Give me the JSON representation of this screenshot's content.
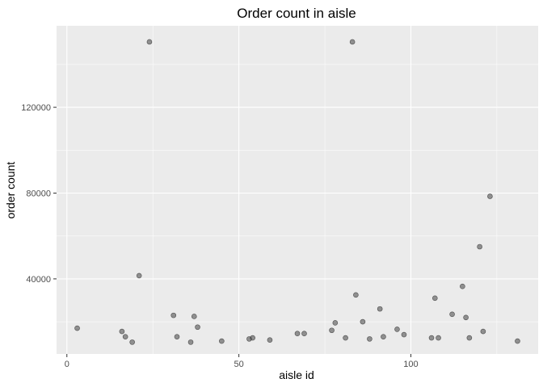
{
  "chart_data": {
    "type": "scatter",
    "title": "Order count in aisle",
    "xlabel": "aisle id",
    "ylabel": "order count",
    "xlim": [
      -3,
      137
    ],
    "ylim": [
      5000,
      158000
    ],
    "x_ticks": [
      0,
      50,
      100
    ],
    "x_minor_ticks": [
      25,
      75,
      125
    ],
    "y_ticks": [
      40000,
      80000,
      120000
    ],
    "y_minor_ticks": [
      20000,
      60000,
      100000,
      140000
    ],
    "grid": true,
    "point_color": "#333333",
    "point_opacity": 0.5,
    "panel_background": "#ebebeb",
    "grid_color": "#ffffff",
    "points": [
      {
        "x": 3,
        "y": 17000
      },
      {
        "x": 16,
        "y": 15500
      },
      {
        "x": 17,
        "y": 13000
      },
      {
        "x": 19,
        "y": 10500
      },
      {
        "x": 21,
        "y": 41500
      },
      {
        "x": 24,
        "y": 150500
      },
      {
        "x": 31,
        "y": 23000
      },
      {
        "x": 32,
        "y": 13000
      },
      {
        "x": 36,
        "y": 10500
      },
      {
        "x": 37,
        "y": 22500
      },
      {
        "x": 38,
        "y": 17500
      },
      {
        "x": 45,
        "y": 11000
      },
      {
        "x": 53,
        "y": 12000
      },
      {
        "x": 54,
        "y": 12500
      },
      {
        "x": 59,
        "y": 11500
      },
      {
        "x": 67,
        "y": 14500
      },
      {
        "x": 69,
        "y": 14500
      },
      {
        "x": 77,
        "y": 16000
      },
      {
        "x": 78,
        "y": 19500
      },
      {
        "x": 81,
        "y": 12500
      },
      {
        "x": 83,
        "y": 150500
      },
      {
        "x": 84,
        "y": 32500
      },
      {
        "x": 86,
        "y": 20000
      },
      {
        "x": 88,
        "y": 12000
      },
      {
        "x": 91,
        "y": 26000
      },
      {
        "x": 92,
        "y": 13000
      },
      {
        "x": 96,
        "y": 16500
      },
      {
        "x": 98,
        "y": 14000
      },
      {
        "x": 106,
        "y": 12500
      },
      {
        "x": 107,
        "y": 31000
      },
      {
        "x": 108,
        "y": 12500
      },
      {
        "x": 112,
        "y": 23500
      },
      {
        "x": 115,
        "y": 36500
      },
      {
        "x": 116,
        "y": 22000
      },
      {
        "x": 117,
        "y": 12500
      },
      {
        "x": 120,
        "y": 55000
      },
      {
        "x": 121,
        "y": 15500
      },
      {
        "x": 123,
        "y": 78500
      },
      {
        "x": 131,
        "y": 11000
      }
    ]
  }
}
